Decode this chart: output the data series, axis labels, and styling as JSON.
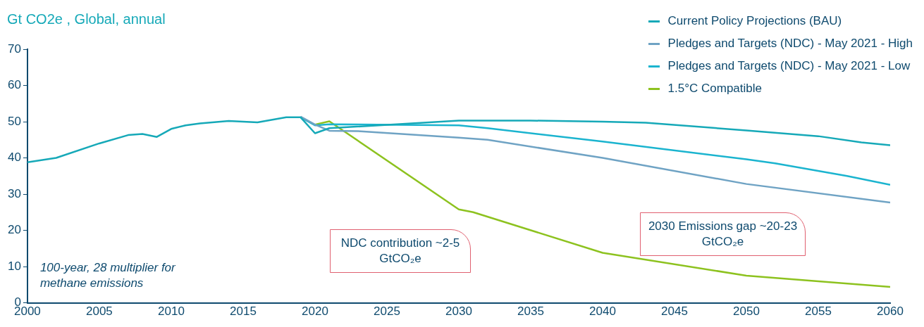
{
  "chart_data": {
    "type": "line",
    "ylabel": "Gt CO2e , Global, annual",
    "xlim": [
      2000,
      2060
    ],
    "xticks": [
      2000,
      2005,
      2010,
      2015,
      2020,
      2025,
      2030,
      2035,
      2040,
      2045,
      2050,
      2055,
      2060
    ],
    "ylim": [
      0,
      70
    ],
    "yticks": [
      0,
      10,
      20,
      30,
      40,
      50,
      60,
      70
    ],
    "grid": false,
    "legend": "top right",
    "marker": "none",
    "line_style": "solid",
    "series": [
      {
        "name": "Current Policy Projections (BAU)",
        "color": "#16a9b8",
        "x": [
          2000,
          2002,
          2005,
          2007,
          2008,
          2009,
          2010,
          2011,
          2012,
          2014,
          2016,
          2018,
          2019,
          2020,
          2021,
          2030,
          2035,
          2040,
          2043,
          2050,
          2055,
          2058,
          2060
        ],
        "values": [
          38.8,
          40,
          44,
          46.3,
          46.6,
          45.8,
          48,
          49,
          49.5,
          50.2,
          49.8,
          51.2,
          51.2,
          46.8,
          48.2,
          50.3,
          50.3,
          50,
          49.7,
          47.6,
          46,
          44.3,
          43.5
        ]
      },
      {
        "name": "Pledges and Targets (NDC) - May 2021 - High",
        "color": "#6fa3c4",
        "x": [
          2019,
          2020,
          2021,
          2023,
          2030,
          2032,
          2040,
          2050,
          2060
        ],
        "values": [
          51.4,
          49.2,
          47.5,
          47.4,
          45.6,
          45,
          40,
          32.8,
          27.7
        ]
      },
      {
        "name": "Pledges and Targets (NDC) - May 2021 - Low",
        "color": "#1bb4cf",
        "x": [
          2019,
          2020,
          2021,
          2030,
          2032,
          2040,
          2050,
          2052,
          2057,
          2060
        ],
        "values": [
          51.2,
          49,
          49.3,
          49,
          48.2,
          44.5,
          39.6,
          38.5,
          35,
          32.6
        ]
      },
      {
        "name": "1.5°C Compatible",
        "color": "#8dc21f",
        "x": [
          2020,
          2021,
          2030,
          2031,
          2040,
          2050,
          2060
        ],
        "values": [
          49.2,
          50.1,
          25.8,
          25,
          13.8,
          7.5,
          4.4
        ]
      }
    ],
    "annotations": [
      "100-year, 28 multiplier for methane emissions",
      "NDC contribution ~2-5 GtCO₂e",
      "2030 Emissions gap ~20-23 GtCO₂e"
    ]
  }
}
